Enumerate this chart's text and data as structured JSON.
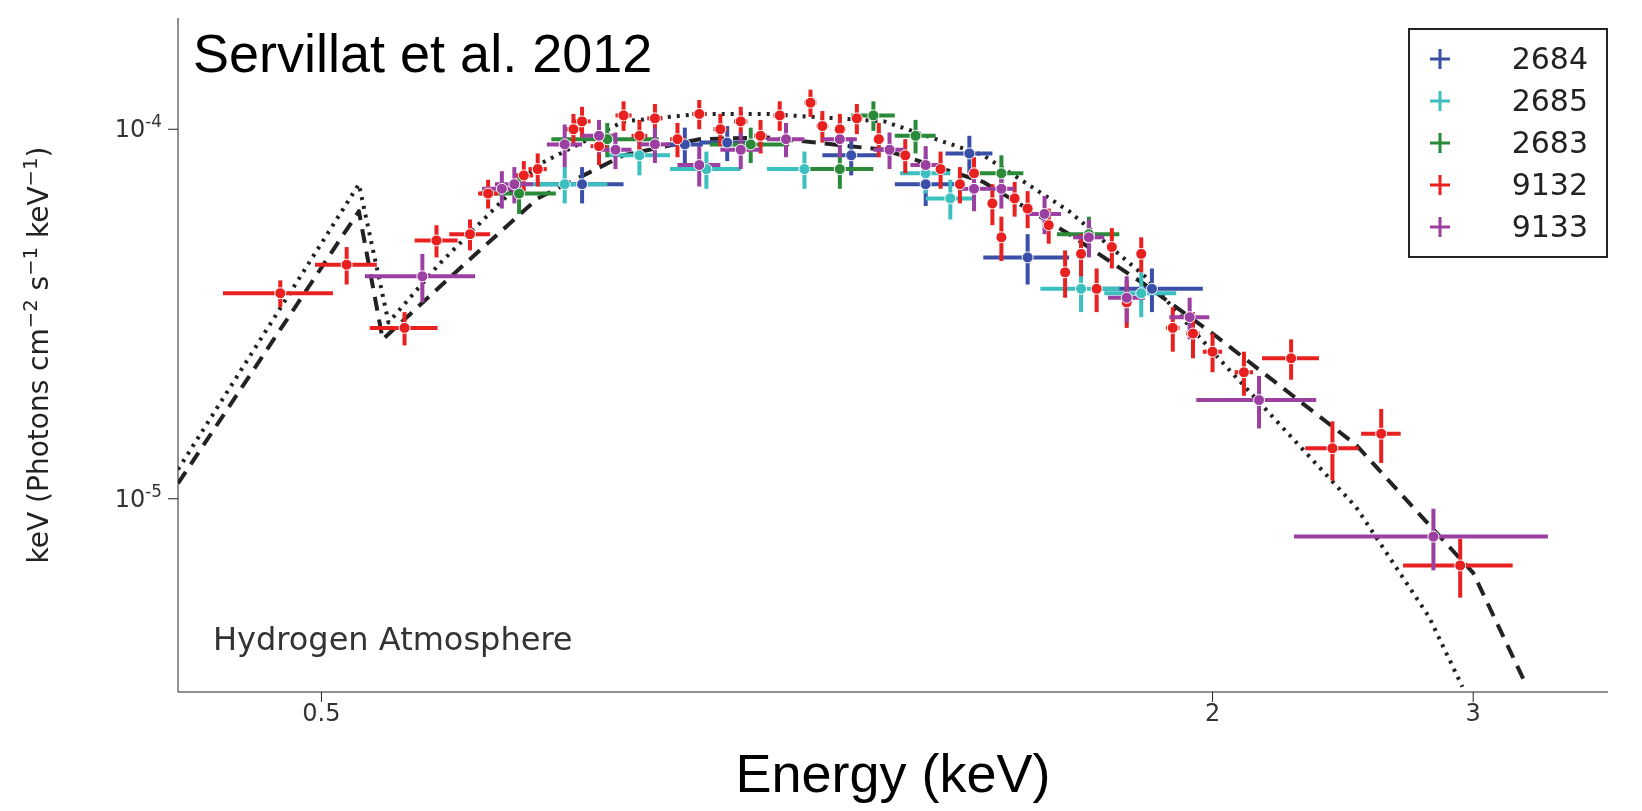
{
  "chart_data": {
    "type": "scatter",
    "annotations": [
      "Servillat et al. 2012",
      "Hydrogen Atmosphere"
    ],
    "xlabel": "Energy (keV)",
    "ylabel": "keV (Photons cm$^{−2}$ s$^{−1}$ keV$^{−1}$)",
    "log": "xy",
    "grid": false,
    "legend": "top right",
    "marker": "circle",
    "xlim": [
      0.4,
      3.7
    ],
    "ylim": [
      3e-06,
      0.0002
    ],
    "xticks": [
      0.5,
      2,
      3
    ],
    "yticks": [
      {
        "value": 1e-05,
        "label": "10$^{-5}$"
      },
      {
        "value": 0.0001,
        "label": "10$^{-4}$"
      }
    ],
    "series": [
      {
        "name": "2684",
        "color": "#3a4fa8",
        "x": [
          0.75,
          0.88,
          0.94,
          1.14,
          1.28,
          1.37,
          1.5,
          1.82
        ],
        "values": [
          7.1e-05,
          9.1e-05,
          9.2e-05,
          8.5e-05,
          7.1e-05,
          8.6e-05,
          4.5e-05,
          3.7e-05
        ],
        "errors": [
          8e-06,
          1e-05,
          1e-05,
          1e-05,
          9e-06,
          1e-05,
          7e-06,
          5e-06
        ],
        "xerrors": [
          0.05,
          0.025,
          0.04,
          0.05,
          0.06,
          0.05,
          0.1,
          0.15
        ]
      },
      {
        "name": "2685",
        "color": "#3bbfbf",
        "x": [
          0.73,
          0.82,
          0.91,
          1.06,
          1.28,
          1.33,
          1.63,
          1.79
        ],
        "values": [
          7.1e-05,
          8.5e-05,
          7.8e-05,
          7.8e-05,
          7.6e-05,
          6.5e-05,
          3.7e-05,
          3.6e-05
        ],
        "errors": [
          8e-06,
          1e-05,
          9e-06,
          9e-06,
          9e-06,
          8e-06,
          5e-06,
          5e-06
        ],
        "xerrors": [
          0.05,
          0.04,
          0.05,
          0.06,
          0.05,
          0.05,
          0.1,
          0.1
        ]
      },
      {
        "name": "2683",
        "color": "#2a8a3a",
        "x": [
          0.68,
          0.78,
          0.975,
          1.12,
          1.18,
          1.26,
          1.44,
          1.65
        ],
        "values": [
          6.7e-05,
          9.4e-05,
          9.1e-05,
          7.8e-05,
          0.000109,
          9.6e-05,
          7.6e-05,
          5.2e-05
        ],
        "errors": [
          8e-06,
          1e-05,
          1e-05,
          9e-06,
          1e-05,
          1e-05,
          9e-06,
          6e-06
        ],
        "xerrors": [
          0.04,
          0.065,
          0.06,
          0.06,
          0.04,
          0.04,
          0.05,
          0.08
        ]
      },
      {
        "name": "9132",
        "color": "#e8201f",
        "x": [
          0.469,
          0.52,
          0.569,
          0.598,
          0.63,
          0.648,
          0.685,
          0.7,
          0.74,
          0.75,
          0.77,
          0.8,
          0.82,
          0.84,
          0.87,
          0.9,
          0.93,
          0.96,
          0.99,
          1.02,
          1.07,
          1.09,
          1.12,
          1.15,
          1.19,
          1.24,
          1.31,
          1.35,
          1.38,
          1.42,
          1.44,
          1.47,
          1.5,
          1.55,
          1.59,
          1.63,
          1.67,
          1.71,
          1.75,
          1.79,
          1.88,
          1.94,
          2.0,
          2.1,
          2.26,
          2.41,
          2.6,
          2.94
        ],
        "values": [
          3.6e-05,
          4.3e-05,
          2.9e-05,
          5e-05,
          5.2e-05,
          6.7e-05,
          7.5e-05,
          7.8e-05,
          0.0001,
          0.000105,
          9e-05,
          0.000109,
          9.6e-05,
          0.000107,
          9.4e-05,
          0.00011,
          0.0001,
          0.000105,
          9.6e-05,
          0.000109,
          0.000118,
          0.000102,
          0.0001,
          0.000107,
          9.4e-05,
          8.5e-05,
          7.8e-05,
          7.1e-05,
          7.6e-05,
          6.3e-05,
          5.1e-05,
          6.5e-05,
          6.1e-05,
          5.5e-05,
          4.1e-05,
          4.6e-05,
          3.7e-05,
          4.8e-05,
          3.4e-05,
          4.6e-05,
          2.9e-05,
          2.8e-05,
          2.5e-05,
          2.2e-05,
          2.4e-05,
          1.37e-05,
          1.5e-05,
          6.6e-06
        ],
        "errors": [
          3e-06,
          5e-06,
          3e-06,
          5e-06,
          5e-06,
          6e-06,
          7e-06,
          8e-06,
          1e-05,
          1e-05,
          1e-05,
          1e-05,
          1e-05,
          1e-05,
          1e-05,
          1e-05,
          1e-05,
          1e-05,
          1e-05,
          1e-05,
          1e-05,
          1e-05,
          1e-05,
          1e-05,
          1e-05,
          9e-06,
          9e-06,
          8e-06,
          8e-06,
          8e-06,
          7e-06,
          7e-06,
          7e-06,
          6e-06,
          6e-06,
          6e-06,
          5e-06,
          6e-06,
          5e-06,
          5e-06,
          4e-06,
          4e-06,
          3e-06,
          3e-06,
          3e-06,
          2.5e-06,
          2.5e-06,
          1.2e-06
        ],
        "xerrors": [
          0.04,
          0.025,
          0.03,
          0.02,
          0.02,
          0.01,
          0.01,
          0.01,
          0.01,
          0.01,
          0.01,
          0.01,
          0.01,
          0.01,
          0.01,
          0.01,
          0.01,
          0.01,
          0.01,
          0.01,
          0.01,
          0.01,
          0.01,
          0.01,
          0.01,
          0.01,
          0.01,
          0.01,
          0.01,
          0.01,
          0.01,
          0.01,
          0.01,
          0.01,
          0.01,
          0.01,
          0.01,
          0.01,
          0.01,
          0.01,
          0.02,
          0.02,
          0.03,
          0.03,
          0.1,
          0.1,
          0.08,
          0.25
        ]
      },
      {
        "name": "9133",
        "color": "#9b3fa0",
        "x": [
          0.585,
          0.662,
          0.675,
          0.73,
          0.77,
          0.79,
          0.84,
          0.9,
          0.96,
          1.03,
          1.12,
          1.21,
          1.28,
          1.38,
          1.44,
          1.54,
          1.65,
          1.75,
          1.93,
          2.15,
          2.82
        ],
        "values": [
          4e-05,
          6.9e-05,
          7.1e-05,
          9.1e-05,
          9.6e-05,
          8.8e-05,
          9.1e-05,
          8e-05,
          8.8e-05,
          9.4e-05,
          9.4e-05,
          8.8e-05,
          8e-05,
          6.9e-05,
          6.9e-05,
          5.9e-05,
          5.1e-05,
          3.5e-05,
          3.1e-05,
          1.85e-05,
          7.9e-06
        ],
        "errors": [
          6e-06,
          8e-06,
          8e-06,
          1.2e-05,
          1e-05,
          1e-05,
          1e-05,
          1e-05,
          1e-05,
          1e-05,
          1e-05,
          1e-05,
          1e-05,
          9e-06,
          8e-06,
          7e-06,
          6e-06,
          5e-06,
          4e-06,
          3e-06,
          1.5e-06
        ],
        "xerrors": [
          0.05,
          0.02,
          0.02,
          0.02,
          0.02,
          0.02,
          0.02,
          0.03,
          0.03,
          0.03,
          0.03,
          0.03,
          0.03,
          0.03,
          0.03,
          0.04,
          0.04,
          0.05,
          0.06,
          0.2,
          0.55
        ]
      },
      {
        "type": "line",
        "color": "#222222",
        "line_style": "dashed",
        "marker": "none",
        "x": [
          0.4,
          0.53,
          0.55,
          0.62,
          0.7,
          0.8,
          0.9,
          1.0,
          1.2,
          1.4,
          1.6,
          1.8,
          2.0,
          2.5,
          3.0,
          3.25
        ],
        "values": [
          1.1e-05,
          6e-05,
          2.7e-05,
          4.2e-05,
          6.5e-05,
          8.5e-05,
          9.4e-05,
          9.5e-05,
          8.8e-05,
          7.2e-05,
          5.2e-05,
          3.8e-05,
          2.8e-05,
          1.4e-05,
          6.3e-06,
          3.2e-06
        ]
      },
      {
        "type": "line",
        "color": "#222222",
        "line_style": "dotted",
        "marker": "none",
        "x": [
          0.4,
          0.53,
          0.555,
          0.6,
          0.7,
          0.8,
          0.9,
          1.0,
          1.2,
          1.4,
          1.6,
          1.8,
          2.0,
          2.5,
          2.8,
          2.95
        ],
        "values": [
          1.2e-05,
          7.1e-05,
          3e-05,
          4.3e-05,
          8e-05,
          0.000105,
          0.00011,
          0.00011,
          0.000105,
          8.5e-05,
          6e-05,
          4e-05,
          2.5e-05,
          9.5e-06,
          4.8e-06,
          3.1e-06
        ]
      }
    ]
  }
}
